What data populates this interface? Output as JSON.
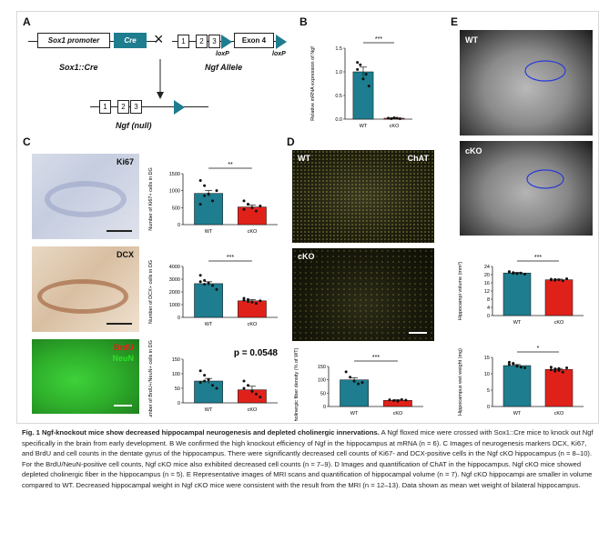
{
  "panels": {
    "a": "A",
    "b": "B",
    "c": "C",
    "d": "D",
    "e": "E"
  },
  "panel_a": {
    "sox1_promoter": "Sox1 promoter",
    "cre": "Cre",
    "sox1_cre": "Sox1::Cre",
    "cross": "×",
    "box1": "1",
    "box2": "2",
    "box3": "3",
    "exon4": "Exon 4",
    "loxp_left": "loxP",
    "loxp_right": "loxP",
    "ngf_allele": "Ngf Allele",
    "ngf_null": "Ngf (null)"
  },
  "micrographs": {
    "ki67": "Ki67",
    "dcx": "DCX",
    "brdu": "BrdU",
    "neun": "NeuN",
    "d_wt": "WT",
    "d_chat": "ChAT",
    "d_cko": "cKO",
    "e_wt": "WT",
    "e_cko": "cKO"
  },
  "colors": {
    "wt": "#1e7d8f",
    "cko": "#e0211a"
  },
  "chart_data": [
    {
      "id": "B",
      "type": "bar",
      "categories": [
        "WT",
        "cKO"
      ],
      "values": [
        1.0,
        0.02
      ],
      "errors": [
        0.1,
        0.01
      ],
      "ylabel": "Relative mRNA expression of Ngf",
      "ylim": [
        0,
        1.5
      ],
      "yticks": [
        "0.0",
        "0.5",
        "1.0",
        "1.5"
      ],
      "sig": "***",
      "points": [
        [
          1.2,
          1.15,
          0.85,
          0.95,
          0.7,
          1.05
        ],
        [
          0.02,
          0.01,
          0.03,
          0.02,
          0.01,
          0.02
        ]
      ]
    },
    {
      "id": "C1",
      "type": "bar",
      "categories": [
        "WT",
        "cKO"
      ],
      "values": [
        920,
        520
      ],
      "errors": [
        90,
        60
      ],
      "ylabel": "Number of Ki67+ cells in DG",
      "ylim": [
        0,
        1500
      ],
      "yticks": [
        "0",
        "500",
        "1000",
        "1500"
      ],
      "sig": "**",
      "points": [
        [
          1300,
          1150,
          900,
          700,
          1000,
          600,
          850
        ],
        [
          700,
          600,
          500,
          400,
          550,
          450,
          600
        ]
      ]
    },
    {
      "id": "C2",
      "type": "bar",
      "categories": [
        "WT",
        "cKO"
      ],
      "values": [
        2650,
        1300
      ],
      "errors": [
        150,
        100
      ],
      "ylabel": "Number of DCX+ cells in DG",
      "ylim": [
        0,
        4000
      ],
      "yticks": [
        "0",
        "1000",
        "2000",
        "3000",
        "4000"
      ],
      "sig": "***",
      "points": [
        [
          3300,
          2900,
          2700,
          2500,
          2200,
          2800,
          2600
        ],
        [
          1500,
          1400,
          1200,
          1100,
          1300,
          1350,
          1250
        ]
      ]
    },
    {
      "id": "C3",
      "type": "bar",
      "categories": [
        "WT",
        "cKO"
      ],
      "values": [
        75,
        45
      ],
      "errors": [
        9,
        12
      ],
      "ylabel": "Number of BrdU+/NeuN+ cells in DG",
      "ylim": [
        0,
        150
      ],
      "yticks": [
        "0",
        "50",
        "100",
        "150"
      ],
      "sig": "p = 0.0548",
      "points": [
        [
          110,
          95,
          80,
          60,
          50,
          70,
          75
        ],
        [
          75,
          60,
          40,
          30,
          20,
          50
        ]
      ]
    },
    {
      "id": "D",
      "type": "bar",
      "categories": [
        "WT",
        "cKO"
      ],
      "values": [
        100,
        23
      ],
      "errors": [
        8,
        3
      ],
      "ylabel": "Cholinergic fiber density (% of WT)",
      "ylim": [
        0,
        150
      ],
      "yticks": [
        "0",
        "50",
        "100",
        "150"
      ],
      "sig": "***",
      "points": [
        [
          130,
          110,
          95,
          85,
          90
        ],
        [
          25,
          22,
          20,
          26,
          24
        ]
      ]
    },
    {
      "id": "E1",
      "type": "bar",
      "categories": [
        "WT",
        "cKO"
      ],
      "values": [
        20.8,
        17.5
      ],
      "errors": [
        0.3,
        0.3
      ],
      "ylabel": "Hippocampi volume (mm³)",
      "ylim": [
        0,
        24
      ],
      "yticks": [
        "0",
        "4",
        "8",
        "12",
        "16",
        "20",
        "24"
      ],
      "sig": "***",
      "points": [
        [
          21.5,
          21.0,
          20.5,
          20.8,
          20.2,
          21.2,
          20.6
        ],
        [
          17.8,
          17.2,
          17.5,
          17.0,
          18.0,
          17.4,
          17.6
        ]
      ]
    },
    {
      "id": "E2",
      "type": "bar",
      "categories": [
        "WT",
        "cKO"
      ],
      "values": [
        12.5,
        11.3
      ],
      "errors": [
        0.3,
        0.3
      ],
      "ylabel": "Hippocampus wet weight (mg)",
      "ylim": [
        0,
        15
      ],
      "yticks": [
        "0",
        "5",
        "10",
        "15"
      ],
      "sig": "*",
      "points": [
        [
          13.5,
          13.0,
          12.5,
          12.0,
          11.8,
          12.8,
          13.2,
          12.3
        ],
        [
          12.0,
          11.5,
          11.0,
          10.5,
          11.8,
          11.2,
          10.8,
          11.6
        ]
      ]
    }
  ],
  "caption": {
    "fig_label": "Fig. 1",
    "title": "Ngf-knockout mice show decreased hippocampal neurogenesis and depleted cholinergic innervations.",
    "body": "A Ngf floxed mice were crossed with Sox1::Cre mice to knock out Ngf specifically in the brain from early development. B We confirmed the high knockout efficiency of Ngf in the hippocampus at mRNA (n = 6). C Images of neurogenesis markers DCX, Ki67, and BrdU and cell counts in the dentate gyrus of the hippocampus. There were significantly decreased cell counts of Ki67- and DCX-positive cells in the Ngf cKO hippocampus (n = 8–10). For the BrdU/NeuN-positive cell counts, Ngf cKO mice also exhibited decreased cell counts (n = 7–9). D Images and quantification of ChAT in the hippocampus. Ngf cKO mice showed depleted cholinergic fiber in the hippocampus (n = 5). E Representative images of MRI scans and quantification of hippocampal volume (n = 7). Ngf cKO hippocampi are smaller in volume compared to WT. Decreased hippocampal weight in Ngf cKO mice were consistent with the result from the MRI (n = 12–13). Data shown as mean wet weight of bilateral hippocampus."
  }
}
